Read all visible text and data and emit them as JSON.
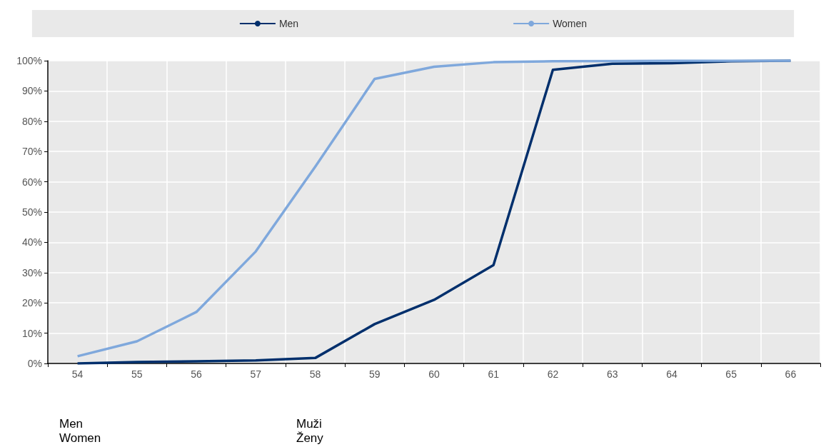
{
  "chart_data": {
    "type": "line",
    "categories": [
      "54",
      "55",
      "56",
      "57",
      "58",
      "59",
      "60",
      "61",
      "62",
      "63",
      "64",
      "65",
      "66"
    ],
    "series": [
      {
        "name": "Men",
        "color": "#002f6c",
        "values": [
          0,
          0.5,
          0.7,
          1,
          1.8,
          13,
          21,
          32.5,
          97,
          99,
          99.2,
          99.8,
          100
        ]
      },
      {
        "name": "Women",
        "color": "#7fa8dc",
        "values": [
          2.4,
          7.3,
          17,
          37,
          65,
          94,
          98,
          99.5,
          99.8,
          99.9,
          100,
          100,
          100
        ]
      }
    ],
    "ylim": [
      0,
      100
    ],
    "yticks": [
      {
        "value": 0,
        "label": "0%"
      },
      {
        "value": 10,
        "label": "10%"
      },
      {
        "value": 20,
        "label": "20%"
      },
      {
        "value": 30,
        "label": "30%"
      },
      {
        "value": 40,
        "label": "40%"
      },
      {
        "value": 50,
        "label": "50%"
      },
      {
        "value": 60,
        "label": "60%"
      },
      {
        "value": 70,
        "label": "70%"
      },
      {
        "value": 80,
        "label": "80%"
      },
      {
        "value": 90,
        "label": "90%"
      },
      {
        "value": 100,
        "label": "100%"
      }
    ],
    "grid": true,
    "legend": "top",
    "annotations": [
      "Men",
      "Women",
      "Muži",
      "Ženy"
    ]
  }
}
